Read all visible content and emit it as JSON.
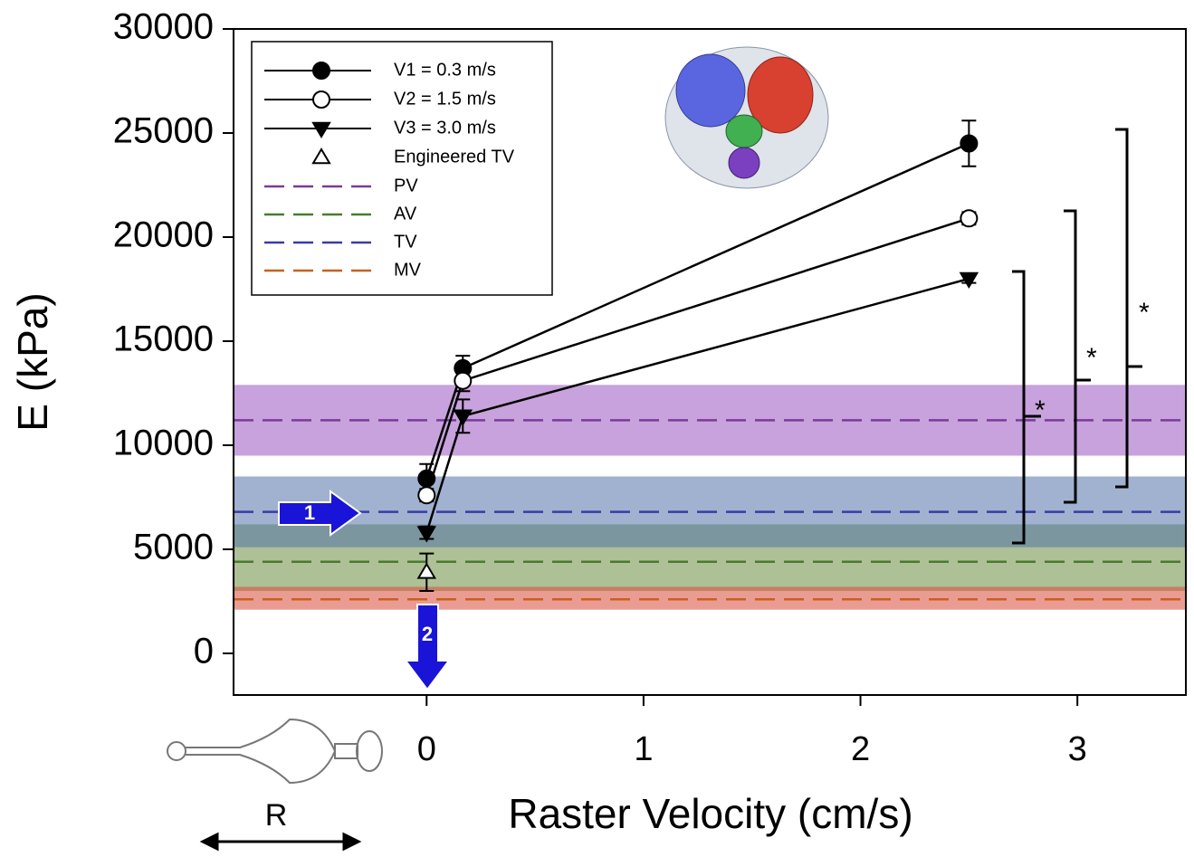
{
  "chart_data": {
    "type": "line",
    "x_label": "Raster Velocity (cm/s)",
    "y_label": "E (kPa)",
    "xlim": [
      -0.89,
      3.5
    ],
    "xticks": [
      0,
      1,
      2,
      3
    ],
    "ylim": [
      -2000,
      30000
    ],
    "yticks": [
      0,
      5000,
      10000,
      15000,
      20000,
      25000,
      30000
    ],
    "series": [
      {
        "name": "V1 = 0.3 m/s",
        "color": "#000000",
        "marker": "filled-circle",
        "x": [
          0,
          0.167,
          2.5
        ],
        "values": [
          8400,
          13700,
          24500
        ],
        "errors": [
          700,
          600,
          1100
        ]
      },
      {
        "name": "V2 = 1.5 m/s",
        "color": "#000000",
        "marker": "open-circle",
        "x": [
          0,
          0.167,
          2.5
        ],
        "values": [
          7600,
          13100,
          20900
        ],
        "errors": [
          300,
          500,
          300
        ]
      },
      {
        "name": "V3 = 3.0 m/s",
        "color": "#000000",
        "marker": "filled-triangle-down",
        "x": [
          0,
          0.167,
          2.5
        ],
        "values": [
          5800,
          11400,
          18000
        ],
        "errors": [
          300,
          800,
          200
        ]
      },
      {
        "name": "Engineered TV",
        "color": "#000000",
        "marker": "open-triangle",
        "x": [
          0
        ],
        "values": [
          3900
        ],
        "errors": [
          900
        ]
      }
    ],
    "bands": [
      {
        "name": "PV",
        "color": "#7a3a9a",
        "fill": "#9a55c0",
        "mean": 11200,
        "low": 9500,
        "high": 12900
      },
      {
        "name": "AV",
        "color": "#4a7a30",
        "fill": "#6a8c40",
        "mean": 4400,
        "low": 3000,
        "high": 6200
      },
      {
        "name": "TV",
        "color": "#3a3aa8",
        "fill": "#5272a8",
        "mean": 6800,
        "low": 5100,
        "high": 8500
      },
      {
        "name": "MV",
        "color": "#c8601e",
        "fill": "#d84a3a",
        "mean": 2600,
        "low": 2100,
        "high": 3200
      }
    ],
    "annotations": [
      "*",
      "*",
      "*"
    ],
    "arrow_labels": [
      "1",
      "2"
    ],
    "device_label": "R"
  }
}
